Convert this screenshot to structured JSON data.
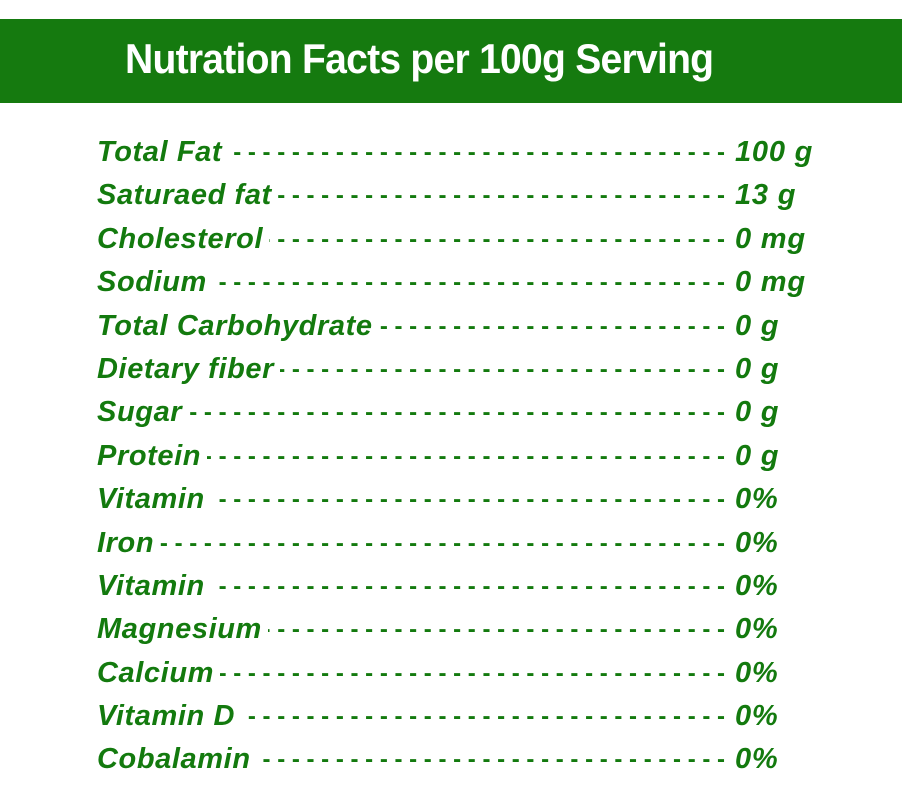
{
  "title": "Nutration Facts per 100g Serving",
  "colors": {
    "header_background": "#157a0f",
    "header_text": "#ffffff",
    "row_text": "#137a0e",
    "page_background": "#ffffff"
  },
  "facts": [
    {
      "label": "Total Fat",
      "value": "100 g"
    },
    {
      "label": "Saturaed fat",
      "value": "13 g"
    },
    {
      "label": "Cholesterol",
      "value": "0 mg"
    },
    {
      "label": "Sodium",
      "value": "0 mg"
    },
    {
      "label": "Total Carbohydrate",
      "value": "0 g"
    },
    {
      "label": "Dietary fiber",
      "value": "0 g"
    },
    {
      "label": "Sugar",
      "value": "0 g"
    },
    {
      "label": "Protein",
      "value": "0 g"
    },
    {
      "label": "Vitamin",
      "value": "0%"
    },
    {
      "label": "Iron",
      "value": "0%"
    },
    {
      "label": "Vitamin",
      "value": "0%"
    },
    {
      "label": "Magnesium",
      "value": "0%"
    },
    {
      "label": "Calcium",
      "value": "0%"
    },
    {
      "label": "Vitamin D",
      "value": "0%"
    },
    {
      "label": "Cobalamin",
      "value": "0%"
    }
  ]
}
